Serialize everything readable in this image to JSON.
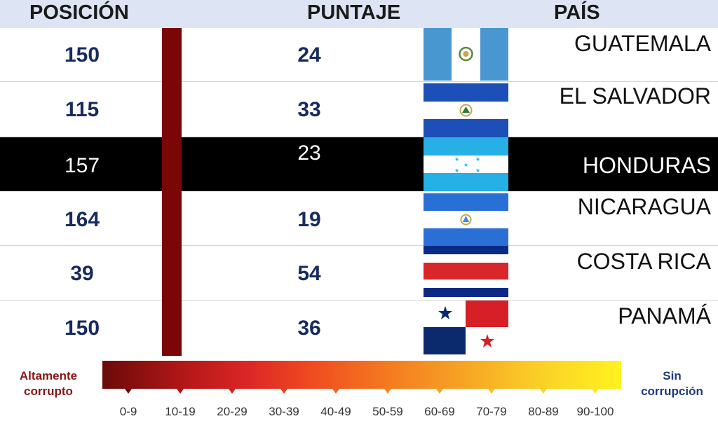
{
  "chart_data": {
    "type": "table",
    "columns": [
      "POSICIÓN",
      "PUNTAJE",
      "PAÍS"
    ],
    "rows": [
      {
        "country": "GUATEMALA",
        "position": 150,
        "score": 24,
        "flag": "guatemala-flag",
        "highlight": false
      },
      {
        "country": "EL SALVADOR",
        "position": 115,
        "score": 33,
        "flag": "el-salvador-flag",
        "highlight": false
      },
      {
        "country": "HONDURAS",
        "position": 157,
        "score": 23,
        "flag": "honduras-flag",
        "highlight": true
      },
      {
        "country": "NICARAGUA",
        "position": 164,
        "score": 19,
        "flag": "nicaragua-flag",
        "highlight": false
      },
      {
        "country": "COSTA RICA",
        "position": 39,
        "score": 54,
        "flag": "costa-rica-flag",
        "highlight": false
      },
      {
        "country": "PANAMÁ",
        "position": 150,
        "score": 36,
        "flag": "panama-flag",
        "highlight": false
      }
    ],
    "legend": {
      "left_label": [
        "Altamente",
        "corrupto"
      ],
      "right_label": [
        "Sin",
        "corrupción"
      ],
      "ranges": [
        "0-9",
        "10-19",
        "20-29",
        "30-39",
        "40-49",
        "50-59",
        "60-69",
        "70-79",
        "80-89",
        "90-100"
      ],
      "range_colors": [
        "#6b0a0a",
        "#a81414",
        "#d42020",
        "#e8421f",
        "#f06322",
        "#f48a22",
        "#f6a224",
        "#f8bf25",
        "#fbd826",
        "#fde623"
      ]
    },
    "colors": {
      "highlight_row": "#000000",
      "severity_bar": "#7a0606",
      "header_bg": "#dde5f4",
      "number_text": "#172b5e"
    }
  }
}
